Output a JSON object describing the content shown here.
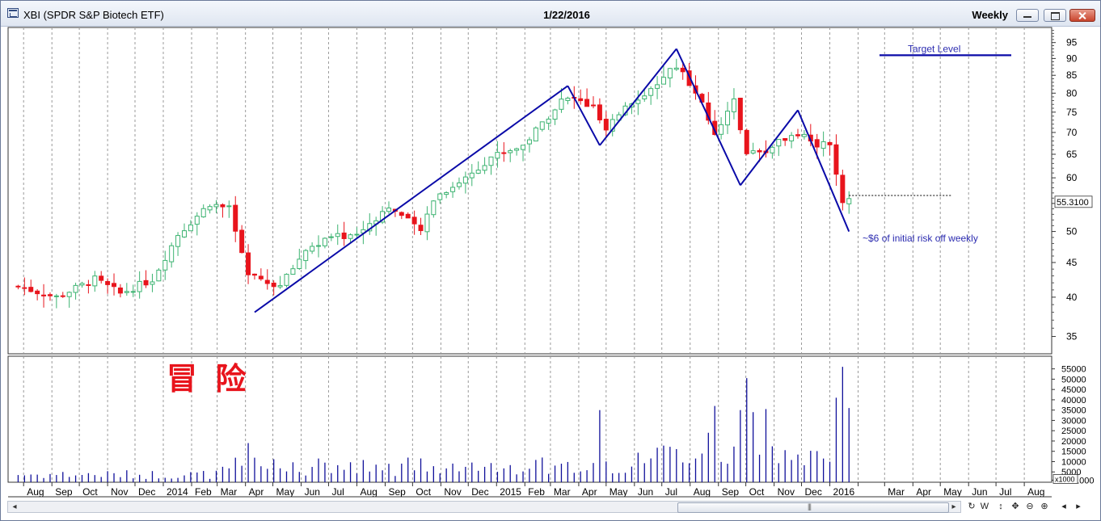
{
  "window": {
    "title": "XBI (SPDR S&P Biotech ETF)",
    "date": "1/22/2016",
    "period": "Weekly"
  },
  "toolbar_icons": [
    "scroll-left-icon",
    "refresh-icon",
    "w-icon",
    "move-vertical-icon",
    "move-icon",
    "zoom-out-icon",
    "zoom-in-icon",
    "prev-icon",
    "next-icon"
  ],
  "toolbar_labels": {
    "w": "W"
  },
  "colors": {
    "up": "#3cb371",
    "down": "#e8141c",
    "trendline": "#0a0aa8",
    "volume": "#10109a",
    "annotation": "#2b2bb0",
    "watermark": "#e8141c"
  },
  "chart_data": [
    {
      "type": "candlestick",
      "frequency": "weekly",
      "price_axis": {
        "scale": "log",
        "ticks": [
          35,
          40,
          45,
          50,
          55,
          60,
          65,
          70,
          75,
          80,
          85,
          90,
          95
        ],
        "ylim": [
          33,
          100
        ]
      },
      "time_axis": {
        "labels": [
          "Aug",
          "Sep",
          "Oct",
          "Nov",
          "Dec",
          "2014",
          "Feb",
          "Mar",
          "Apr",
          "May",
          "Jun",
          "Jul",
          "Aug",
          "Sep",
          "Oct",
          "Nov",
          "Dec",
          "2015",
          "Feb",
          "Mar",
          "Apr",
          "May",
          "Jun",
          "Jul",
          "Aug",
          "Sep",
          "Oct",
          "Nov",
          "Dec",
          "2016",
          "Mar",
          "Apr",
          "May",
          "Jun",
          "Jul",
          "Aug"
        ]
      },
      "last_price": "55.3100",
      "trend_points": [
        {
          "date": "2014-04-11",
          "price": 38.0
        },
        {
          "date": "2015-03-20",
          "price": 82.0
        },
        {
          "date": "2015-04-24",
          "price": 67.0
        },
        {
          "date": "2015-07-17",
          "price": 93.0
        },
        {
          "date": "2015-09-25",
          "price": 58.5
        },
        {
          "date": "2015-11-27",
          "price": 75.5
        },
        {
          "date": "2016-01-22",
          "price": 50.0
        }
      ],
      "target_level": {
        "label": "Target Level",
        "price": 91.0
      },
      "annotation": "~$6 of initial risk off weekly",
      "reference_line": {
        "price": 56.5,
        "style": "dotted"
      },
      "anchors": [
        {
          "date": "2013-07-26",
          "close": 41.5
        },
        {
          "date": "2013-09-06",
          "close": 40.0
        },
        {
          "date": "2013-10-18",
          "close": 42.5
        },
        {
          "date": "2013-11-15",
          "close": 40.5
        },
        {
          "date": "2013-12-20",
          "close": 42.5
        },
        {
          "date": "2014-01-17",
          "close": 49.5
        },
        {
          "date": "2014-02-21",
          "close": 55.0
        },
        {
          "date": "2014-03-14",
          "close": 54.0
        },
        {
          "date": "2014-04-04",
          "close": 43.0
        },
        {
          "date": "2014-05-09",
          "close": 41.5
        },
        {
          "date": "2014-06-06",
          "close": 47.0
        },
        {
          "date": "2014-07-04",
          "close": 49.0
        },
        {
          "date": "2014-08-01",
          "close": 49.5
        },
        {
          "date": "2014-09-05",
          "close": 54.5
        },
        {
          "date": "2014-10-10",
          "close": 50.0
        },
        {
          "date": "2014-10-24",
          "close": 56.0
        },
        {
          "date": "2014-11-28",
          "close": 60.0
        },
        {
          "date": "2014-12-26",
          "close": 64.5
        },
        {
          "date": "2015-01-30",
          "close": 67.0
        },
        {
          "date": "2015-03-13",
          "close": 78.0
        },
        {
          "date": "2015-03-27",
          "close": 78.5
        },
        {
          "date": "2015-04-17",
          "close": 76.0
        },
        {
          "date": "2015-05-01",
          "close": 70.0
        },
        {
          "date": "2015-05-22",
          "close": 77.0
        },
        {
          "date": "2015-06-26",
          "close": 82.0
        },
        {
          "date": "2015-07-17",
          "close": 88.0
        },
        {
          "date": "2015-08-14",
          "close": 78.0
        },
        {
          "date": "2015-08-28",
          "close": 70.0
        },
        {
          "date": "2015-09-18",
          "close": 78.0
        },
        {
          "date": "2015-10-02",
          "close": 65.0
        },
        {
          "date": "2015-10-23",
          "close": 66.0
        },
        {
          "date": "2015-11-20",
          "close": 70.0
        },
        {
          "date": "2015-12-04",
          "close": 70.0
        },
        {
          "date": "2015-12-18",
          "close": 67.0
        },
        {
          "date": "2015-12-31",
          "close": 68.0
        },
        {
          "date": "2016-01-08",
          "close": 61.0
        },
        {
          "date": "2016-01-15",
          "close": 55.5
        },
        {
          "date": "2016-01-22",
          "close": 55.31
        }
      ]
    },
    {
      "type": "bar",
      "series_name": "Volume",
      "volume_axis": {
        "ticks": [
          1000,
          5000,
          10000,
          15000,
          20000,
          25000,
          30000,
          35000,
          40000,
          45000,
          50000,
          55000
        ],
        "multiplier_label": "x1000",
        "ylim": [
          0,
          58000
        ]
      },
      "watermark": "冒 险",
      "big_weeks": [
        {
          "date": "2014-04-04",
          "volume": 19000
        },
        {
          "date": "2015-04-24",
          "volume": 35000
        },
        {
          "date": "2015-08-21",
          "volume": 24000
        },
        {
          "date": "2015-08-28",
          "volume": 37000
        },
        {
          "date": "2015-09-25",
          "volume": 35000
        },
        {
          "date": "2015-10-02",
          "volume": 50500
        },
        {
          "date": "2015-10-09",
          "volume": 34000
        },
        {
          "date": "2015-10-23",
          "volume": 35500
        },
        {
          "date": "2016-01-08",
          "volume": 41000
        },
        {
          "date": "2016-01-15",
          "volume": 56000
        },
        {
          "date": "2016-01-22",
          "volume": 36000
        }
      ]
    }
  ]
}
